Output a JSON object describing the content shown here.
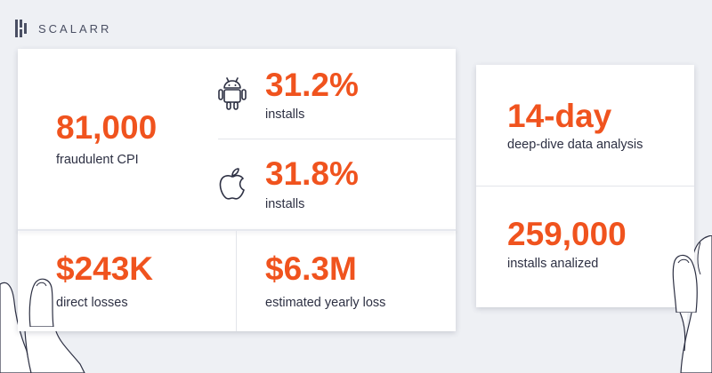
{
  "brand": {
    "name": "SCALARR"
  },
  "colors": {
    "accent": "#f0531e",
    "text": "#2d3043",
    "background": "#eef0f4"
  },
  "stats": {
    "fraud_cpi": {
      "value": "81,000",
      "label": "fraudulent CPI"
    },
    "android": {
      "icon": "android-icon",
      "value": "31.2%",
      "label": "installs"
    },
    "ios": {
      "icon": "apple-icon",
      "value": "31.8%",
      "label": "installs"
    },
    "direct_losses": {
      "value": "$243K",
      "label": "direct losses"
    },
    "yearly_loss": {
      "value": "$6.3M",
      "label": "estimated yearly loss"
    },
    "analysis": {
      "value": "14-day",
      "label": "deep-dive data analysis"
    },
    "installs_analyzed": {
      "value": "259,000",
      "label": "installs analized"
    }
  }
}
